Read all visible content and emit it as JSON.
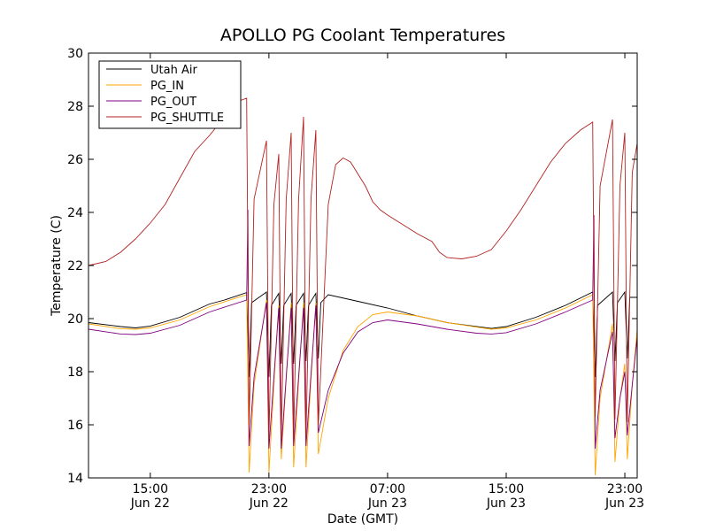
{
  "chart_data": {
    "type": "line",
    "title": "APOLLO PG Coolant Temperatures",
    "xlabel": "Date (GMT)",
    "ylabel": "Temperature (C)",
    "x_unit": "hours",
    "xlim": [
      "Jun 22 10:50",
      "Jun 23 23:50"
    ],
    "ylim": [
      14,
      30
    ],
    "yticks": [
      14,
      16,
      18,
      20,
      22,
      24,
      26,
      28,
      30
    ],
    "xticks": [
      {
        "at": "Jun 22 15:00",
        "time": "15:00",
        "date": "Jun 22"
      },
      {
        "at": "Jun 22 23:00",
        "time": "23:00",
        "date": "Jun 22"
      },
      {
        "at": "Jun 23 07:00",
        "time": "07:00",
        "date": "Jun 23"
      },
      {
        "at": "Jun 23 15:00",
        "time": "15:00",
        "date": "Jun 23"
      },
      {
        "at": "Jun 23 23:00",
        "time": "23:00",
        "date": "Jun 23"
      }
    ],
    "grid": false,
    "legend_position": "top-left",
    "series": [
      {
        "name": "Utah Air",
        "color": "#000000",
        "points": [
          [
            "Jun 22 10:50",
            19.85
          ],
          [
            "Jun 22 13:00",
            19.7
          ],
          [
            "Jun 22 14:00",
            19.65
          ],
          [
            "Jun 22 15:00",
            19.72
          ],
          [
            "Jun 22 17:00",
            20.05
          ],
          [
            "Jun 22 19:00",
            20.55
          ],
          [
            "Jun 22 20:00",
            20.7
          ],
          [
            "Jun 22 21:30",
            20.98
          ],
          [
            "Jun 22 21:40",
            17.8
          ],
          [
            "Jun 22 21:50",
            20.6
          ],
          [
            "Jun 22 22:50",
            21.0
          ],
          [
            "Jun 22 23:00",
            17.8
          ],
          [
            "Jun 22 23:10",
            20.5
          ],
          [
            "Jun 22 23:40",
            20.95
          ],
          [
            "Jun 22 23:50",
            18.3
          ],
          [
            "Jun 23 00:00",
            20.5
          ],
          [
            "Jun 23 00:30",
            20.95
          ],
          [
            "Jun 23 00:40",
            18.3
          ],
          [
            "Jun 23 00:50",
            20.5
          ],
          [
            "Jun 23 01:20",
            20.95
          ],
          [
            "Jun 23 01:30",
            18.4
          ],
          [
            "Jun 23 01:40",
            20.5
          ],
          [
            "Jun 23 02:10",
            20.95
          ],
          [
            "Jun 23 02:20",
            18.5
          ],
          [
            "Jun 23 02:30",
            20.6
          ],
          [
            "Jun 23 03:00",
            20.9
          ],
          [
            "Jun 23 05:00",
            20.65
          ],
          [
            "Jun 23 07:00",
            20.4
          ],
          [
            "Jun 23 09:00",
            20.1
          ],
          [
            "Jun 23 11:00",
            19.85
          ],
          [
            "Jun 23 13:00",
            19.7
          ],
          [
            "Jun 23 14:00",
            19.63
          ],
          [
            "Jun 23 15:00",
            19.7
          ],
          [
            "Jun 23 17:00",
            20.05
          ],
          [
            "Jun 23 19:00",
            20.5
          ],
          [
            "Jun 23 20:50",
            21.0
          ],
          [
            "Jun 23 21:00",
            17.8
          ],
          [
            "Jun 23 21:10",
            20.5
          ],
          [
            "Jun 23 22:10",
            21.0
          ],
          [
            "Jun 23 22:20",
            18.4
          ],
          [
            "Jun 23 22:30",
            20.6
          ],
          [
            "Jun 23 23:00",
            21.0
          ],
          [
            "Jun 23 23:10",
            18.5
          ],
          [
            "Jun 23 23:20",
            20.8
          ],
          [
            "Jun 23 23:50",
            20.8
          ]
        ]
      },
      {
        "name": "PG_IN",
        "color": "#ffa500",
        "points": [
          [
            "Jun 22 10:50",
            19.8
          ],
          [
            "Jun 22 13:00",
            19.62
          ],
          [
            "Jun 22 14:00",
            19.6
          ],
          [
            "Jun 22 15:00",
            19.65
          ],
          [
            "Jun 22 17:00",
            19.95
          ],
          [
            "Jun 22 19:00",
            20.45
          ],
          [
            "Jun 22 21:30",
            20.9
          ],
          [
            "Jun 22 21:40",
            14.2
          ],
          [
            "Jun 22 22:00",
            17.5
          ],
          [
            "Jun 22 22:50",
            20.7
          ],
          [
            "Jun 22 23:00",
            14.2
          ],
          [
            "Jun 22 23:20",
            17.5
          ],
          [
            "Jun 22 23:40",
            20.5
          ],
          [
            "Jun 22 23:50",
            14.7
          ],
          [
            "Jun 23 00:10",
            17.7
          ],
          [
            "Jun 23 00:30",
            20.6
          ],
          [
            "Jun 23 00:40",
            14.4
          ],
          [
            "Jun 23 01:00",
            17.6
          ],
          [
            "Jun 23 01:20",
            20.6
          ],
          [
            "Jun 23 01:30",
            14.4
          ],
          [
            "Jun 23 01:50",
            17.7
          ],
          [
            "Jun 23 02:10",
            20.6
          ],
          [
            "Jun 23 02:20",
            14.9
          ],
          [
            "Jun 23 03:00",
            17.0
          ],
          [
            "Jun 23 04:00",
            18.8
          ],
          [
            "Jun 23 05:00",
            19.7
          ],
          [
            "Jun 23 06:00",
            20.15
          ],
          [
            "Jun 23 07:00",
            20.25
          ],
          [
            "Jun 23 09:00",
            20.1
          ],
          [
            "Jun 23 11:00",
            19.85
          ],
          [
            "Jun 23 13:00",
            19.68
          ],
          [
            "Jun 23 14:00",
            19.6
          ],
          [
            "Jun 23 15:00",
            19.65
          ],
          [
            "Jun 23 17:00",
            19.95
          ],
          [
            "Jun 23 19:00",
            20.4
          ],
          [
            "Jun 23 20:50",
            20.9
          ],
          [
            "Jun 23 21:00",
            14.1
          ],
          [
            "Jun 23 21:20",
            17.0
          ],
          [
            "Jun 23 22:10",
            19.8
          ],
          [
            "Jun 23 22:20",
            14.6
          ],
          [
            "Jun 23 22:40",
            17.0
          ],
          [
            "Jun 23 23:00",
            18.3
          ],
          [
            "Jun 23 23:10",
            14.7
          ],
          [
            "Jun 23 23:30",
            17.5
          ],
          [
            "Jun 23 23:50",
            19.6
          ]
        ]
      },
      {
        "name": "PG_OUT",
        "color": "#800080",
        "points": [
          [
            "Jun 22 10:50",
            19.6
          ],
          [
            "Jun 22 13:00",
            19.42
          ],
          [
            "Jun 22 14:00",
            19.4
          ],
          [
            "Jun 22 15:00",
            19.45
          ],
          [
            "Jun 22 17:00",
            19.75
          ],
          [
            "Jun 22 19:00",
            20.25
          ],
          [
            "Jun 22 21:30",
            20.7
          ],
          [
            "Jun 22 21:35",
            24.1
          ],
          [
            "Jun 22 21:40",
            15.2
          ],
          [
            "Jun 22 22:00",
            17.8
          ],
          [
            "Jun 22 22:50",
            20.6
          ],
          [
            "Jun 22 23:00",
            15.1
          ],
          [
            "Jun 22 23:20",
            17.8
          ],
          [
            "Jun 22 23:40",
            20.4
          ],
          [
            "Jun 22 23:50",
            15.1
          ],
          [
            "Jun 23 00:10",
            17.8
          ],
          [
            "Jun 23 00:30",
            20.4
          ],
          [
            "Jun 23 00:40",
            15.2
          ],
          [
            "Jun 23 01:00",
            17.8
          ],
          [
            "Jun 23 01:20",
            20.4
          ],
          [
            "Jun 23 01:30",
            15.2
          ],
          [
            "Jun 23 01:50",
            17.9
          ],
          [
            "Jun 23 02:10",
            20.5
          ],
          [
            "Jun 23 02:20",
            15.7
          ],
          [
            "Jun 23 03:00",
            17.3
          ],
          [
            "Jun 23 04:00",
            18.7
          ],
          [
            "Jun 23 05:00",
            19.5
          ],
          [
            "Jun 23 06:00",
            19.85
          ],
          [
            "Jun 23 07:00",
            19.95
          ],
          [
            "Jun 23 09:00",
            19.8
          ],
          [
            "Jun 23 11:00",
            19.6
          ],
          [
            "Jun 23 13:00",
            19.45
          ],
          [
            "Jun 23 14:00",
            19.42
          ],
          [
            "Jun 23 15:00",
            19.47
          ],
          [
            "Jun 23 17:00",
            19.8
          ],
          [
            "Jun 23 19:00",
            20.25
          ],
          [
            "Jun 23 20:50",
            20.7
          ],
          [
            "Jun 23 20:55",
            23.9
          ],
          [
            "Jun 23 21:00",
            15.1
          ],
          [
            "Jun 23 21:20",
            17.3
          ],
          [
            "Jun 23 22:10",
            19.5
          ],
          [
            "Jun 23 22:20",
            15.5
          ],
          [
            "Jun 23 22:40",
            17.0
          ],
          [
            "Jun 23 23:00",
            18.0
          ],
          [
            "Jun 23 23:10",
            15.6
          ],
          [
            "Jun 23 23:30",
            17.5
          ],
          [
            "Jun 23 23:50",
            19.3
          ]
        ]
      },
      {
        "name": "PG_SHUTTLE",
        "color": "#b22222",
        "points": [
          [
            "Jun 22 10:50",
            22.0
          ],
          [
            "Jun 22 12:00",
            22.15
          ],
          [
            "Jun 22 13:00",
            22.5
          ],
          [
            "Jun 22 14:00",
            23.0
          ],
          [
            "Jun 22 15:00",
            23.6
          ],
          [
            "Jun 22 16:00",
            24.3
          ],
          [
            "Jun 22 17:00",
            25.3
          ],
          [
            "Jun 22 18:00",
            26.3
          ],
          [
            "Jun 22 19:00",
            26.9
          ],
          [
            "Jun 22 20:00",
            27.6
          ],
          [
            "Jun 22 21:00",
            28.2
          ],
          [
            "Jun 22 21:30",
            28.3
          ],
          [
            "Jun 22 21:40",
            16.0
          ],
          [
            "Jun 22 22:00",
            24.5
          ],
          [
            "Jun 22 22:50",
            26.7
          ],
          [
            "Jun 22 23:00",
            15.5
          ],
          [
            "Jun 22 23:20",
            24.3
          ],
          [
            "Jun 22 23:40",
            26.2
          ],
          [
            "Jun 22 23:50",
            15.5
          ],
          [
            "Jun 23 00:10",
            24.5
          ],
          [
            "Jun 23 00:30",
            27.0
          ],
          [
            "Jun 23 00:40",
            15.5
          ],
          [
            "Jun 23 01:00",
            24.5
          ],
          [
            "Jun 23 01:20",
            27.6
          ],
          [
            "Jun 23 01:30",
            15.6
          ],
          [
            "Jun 23 01:50",
            24.5
          ],
          [
            "Jun 23 02:10",
            27.1
          ],
          [
            "Jun 23 02:20",
            16.0
          ],
          [
            "Jun 23 03:00",
            24.3
          ],
          [
            "Jun 23 03:30",
            25.8
          ],
          [
            "Jun 23 04:00",
            26.05
          ],
          [
            "Jun 23 04:30",
            25.9
          ],
          [
            "Jun 23 05:30",
            25.0
          ],
          [
            "Jun 23 06:00",
            24.4
          ],
          [
            "Jun 23 06:30",
            24.1
          ],
          [
            "Jun 23 07:00",
            23.9
          ],
          [
            "Jun 23 08:00",
            23.55
          ],
          [
            "Jun 23 09:00",
            23.2
          ],
          [
            "Jun 23 10:00",
            22.9
          ],
          [
            "Jun 23 10:30",
            22.5
          ],
          [
            "Jun 23 11:00",
            22.3
          ],
          [
            "Jun 23 12:00",
            22.25
          ],
          [
            "Jun 23 13:00",
            22.35
          ],
          [
            "Jun 23 14:00",
            22.6
          ],
          [
            "Jun 23 15:00",
            23.3
          ],
          [
            "Jun 23 16:00",
            24.1
          ],
          [
            "Jun 23 17:00",
            25.0
          ],
          [
            "Jun 23 18:00",
            25.9
          ],
          [
            "Jun 23 19:00",
            26.6
          ],
          [
            "Jun 23 20:00",
            27.1
          ],
          [
            "Jun 23 20:50",
            27.4
          ],
          [
            "Jun 23 21:00",
            16.3
          ],
          [
            "Jun 23 21:20",
            25.0
          ],
          [
            "Jun 23 22:10",
            27.5
          ],
          [
            "Jun 23 22:20",
            16.2
          ],
          [
            "Jun 23 22:40",
            25.0
          ],
          [
            "Jun 23 23:00",
            27.0
          ],
          [
            "Jun 23 23:10",
            16.1
          ],
          [
            "Jun 23 23:30",
            25.5
          ],
          [
            "Jun 23 23:50",
            26.6
          ]
        ]
      }
    ]
  }
}
